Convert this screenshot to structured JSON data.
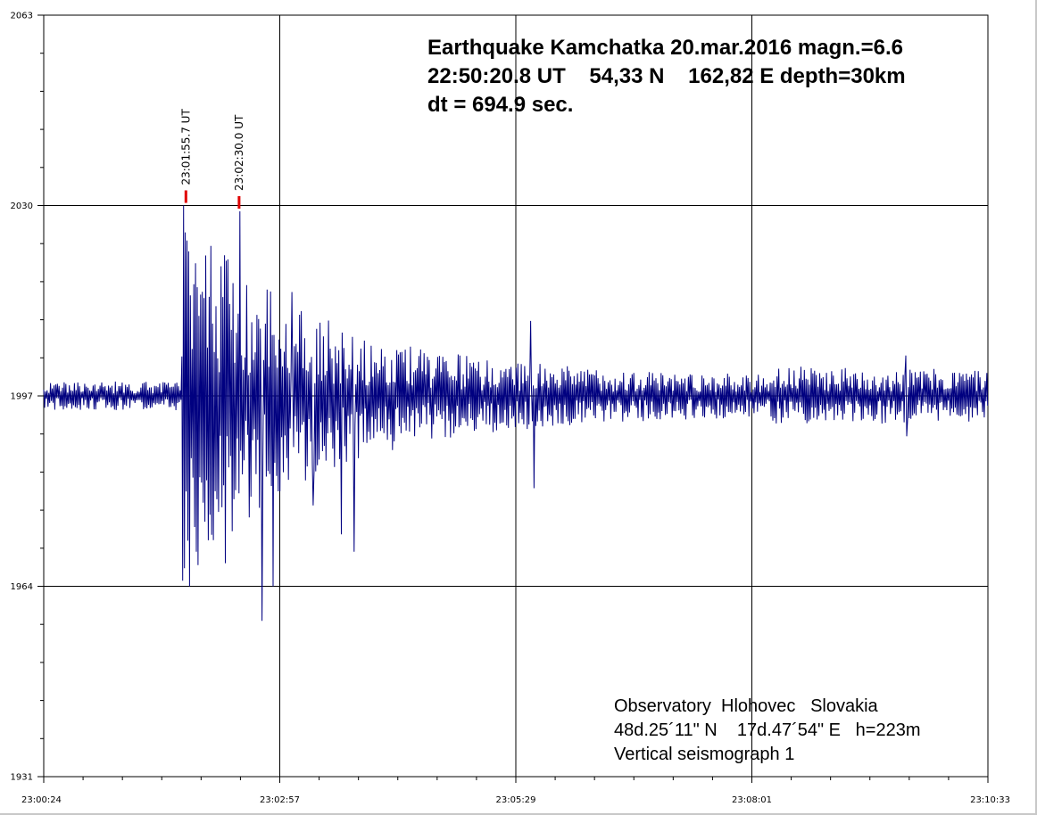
{
  "chart_data": {
    "type": "line",
    "title_lines": [
      "Earthquake Kamchatka 20.mar.2016 magn.=6.6",
      "22:50:20.8 UT    54,33 N    162,82 E depth=30km",
      "dt = 694.9 sec."
    ],
    "observatory_lines": [
      "Observatory  Hlohovec   Slovakia",
      "48d.25´11\" N    17d.47´54\" E   h=223m",
      "Vertical seismograph 1"
    ],
    "xlabel": "",
    "ylabel": "",
    "x_tick_labels": [
      "23:00:24",
      "23:02:57",
      "23:05:29",
      "23:08:01",
      "23:10:33"
    ],
    "x_range_seconds": [
      0,
      609
    ],
    "y_tick_labels": [
      "2063",
      "2030",
      "1997",
      "1964",
      "1931"
    ],
    "ylim": [
      1931,
      2063
    ],
    "grid": true,
    "markers": [
      {
        "label": "23:01:55.7 UT",
        "t": 91.7,
        "color": "#e00000"
      },
      {
        "label": "23:02:30.0 UT",
        "t": 126.0,
        "color": "#e00000"
      }
    ],
    "series": [
      {
        "color": "#000080",
        "baseline": 1997,
        "peaks": [
          {
            "t": 90.0,
            "v": 2030
          },
          {
            "t": 94.0,
            "v": 1964
          },
          {
            "t": 98.0,
            "v": 2020
          },
          {
            "t": 108.0,
            "v": 2023
          },
          {
            "t": 117.0,
            "v": 1968
          },
          {
            "t": 126.5,
            "v": 2029
          },
          {
            "t": 141.0,
            "v": 1958
          },
          {
            "t": 148.0,
            "v": 1964
          },
          {
            "t": 160.0,
            "v": 2015
          },
          {
            "t": 174.0,
            "v": 1978
          },
          {
            "t": 192.0,
            "v": 1973
          },
          {
            "t": 200.0,
            "v": 1970
          },
          {
            "t": 314.0,
            "v": 2010
          },
          {
            "t": 316.0,
            "v": 1981
          },
          {
            "t": 556.0,
            "v": 2004
          },
          {
            "t": 556.5,
            "v": 1990
          }
        ]
      }
    ]
  }
}
